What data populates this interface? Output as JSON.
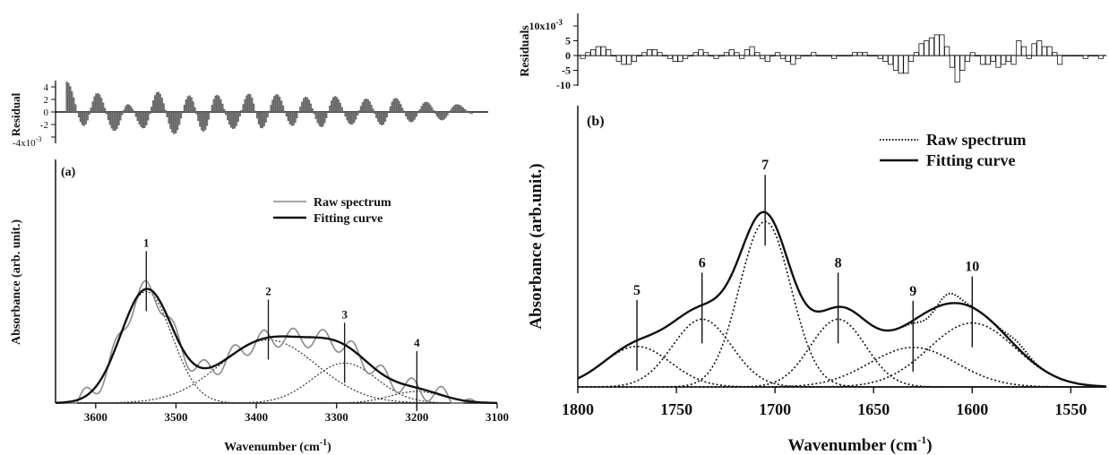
{
  "chart_data": [
    {
      "id": "panel-a",
      "type": "line",
      "panel_label": "(a)",
      "xlabel": "Wavenumber (cm",
      "xlabel_sup": "-1",
      "xlabel_tail": ")",
      "ylabel": "Absorbance (arb. unit.)",
      "xlim": [
        3650,
        3100
      ],
      "ylim": [
        0,
        1
      ],
      "x_ticks": [
        3600,
        3500,
        3400,
        3300,
        3200,
        3100
      ],
      "grid": false,
      "legend_position": "top-right",
      "legend": [
        {
          "label": "Raw spectrum",
          "style": "thin-gray"
        },
        {
          "label": "Fitting curve",
          "style": "thick-black"
        }
      ],
      "components": [
        {
          "label": "1",
          "center": 3537,
          "height": 0.53,
          "width": 32
        },
        {
          "label": "2",
          "center": 3385,
          "height": 0.3,
          "width": 60
        },
        {
          "label": "3",
          "center": 3290,
          "height": 0.19,
          "width": 40
        },
        {
          "label": "4",
          "center": 3200,
          "height": 0.055,
          "width": 33
        }
      ],
      "raw_spectrum": {
        "ripple_amplitude": 0.045,
        "ripple_period_cm": 37,
        "fit_offset": -0.005,
        "note": "oscillating raw trace follows the fitted envelope"
      },
      "residual": {
        "ylabel": "Residual",
        "scale_label": "x10",
        "scale_exp": "-3",
        "ylim": [
          -4.5,
          5
        ],
        "y_ticks": [
          4,
          2,
          0,
          -2,
          -4
        ],
        "y_tick_labels": [
          "4",
          "2",
          "0",
          "-2",
          "-4"
        ],
        "style": "filled-gray-bars",
        "peaks_x": [
          3637,
          3615,
          3598,
          3576,
          3559,
          3539,
          3521,
          3500,
          3481,
          3463,
          3446,
          3425,
          3405,
          3389,
          3370,
          3350,
          3333,
          3313,
          3296,
          3275,
          3256,
          3236,
          3219,
          3199,
          3180,
          3160,
          3141,
          3121
        ],
        "peaks_y": [
          4.8,
          -2.2,
          3.0,
          -3.0,
          1.2,
          -2.6,
          3.2,
          -3.5,
          2.6,
          -3.1,
          2.7,
          -2.7,
          2.9,
          -2.6,
          2.8,
          -2.2,
          2.4,
          -2.4,
          2.5,
          -2.0,
          2.1,
          -2.1,
          2.2,
          -1.6,
          1.6,
          -1.3,
          1.2,
          -0.3
        ]
      }
    },
    {
      "id": "panel-b",
      "type": "line",
      "panel_label": "(b)",
      "xlabel": "Wavenumber (cm",
      "xlabel_sup": "-1",
      "xlabel_tail": ")",
      "ylabel": "Absorbance (arb.unit.)",
      "xlim": [
        1800,
        1532
      ],
      "ylim": [
        0,
        1
      ],
      "x_ticks": [
        1800,
        1750,
        1700,
        1650,
        1600,
        1550
      ],
      "grid": false,
      "legend_position": "top-right",
      "legend": [
        {
          "label": "Raw spectrum",
          "style": "dotted"
        },
        {
          "label": "Fitting curve",
          "style": "thick-black"
        }
      ],
      "components": [
        {
          "label": "5",
          "center": 1770,
          "height": 0.215,
          "width": 17
        },
        {
          "label": "6",
          "center": 1737,
          "height": 0.36,
          "width": 15
        },
        {
          "label": "7",
          "center": 1705,
          "height": 0.88,
          "width": 13
        },
        {
          "label": "8",
          "center": 1668,
          "height": 0.36,
          "width": 14
        },
        {
          "label": "9",
          "center": 1630,
          "height": 0.21,
          "width": 22
        },
        {
          "label": "10",
          "center": 1600,
          "height": 0.34,
          "width": 22
        }
      ],
      "raw_spectrum": {
        "deviations_x": [
          1612,
          1623,
          1577
        ],
        "deviations_y": [
          0.055,
          -0.04,
          0.03
        ]
      },
      "residual": {
        "ylabel": "Residuals",
        "scale_label": "10x10",
        "scale_exp": "-3",
        "ylim": [
          -10,
          14
        ],
        "y_ticks": [
          10,
          5,
          0,
          -5,
          -10
        ],
        "y_tick_labels": [
          "10x10",
          "5",
          "0",
          "-5",
          "-10"
        ],
        "style": "outlined-bars",
        "values": [
          -1,
          1,
          2,
          3,
          3,
          2,
          0,
          -2,
          -3,
          -3,
          -2,
          0,
          1,
          2,
          2,
          1,
          0,
          -1,
          -2,
          -2,
          -1,
          0,
          1,
          2,
          1,
          0,
          -1,
          0,
          1,
          2,
          1,
          -1,
          2,
          3,
          1,
          -1,
          -2,
          0,
          1,
          -1,
          -2,
          -3,
          -1,
          0,
          0,
          1,
          0,
          0,
          0,
          -1,
          0,
          0,
          0,
          1,
          1,
          1,
          0,
          0,
          -1,
          -2,
          -3,
          -5,
          -6,
          -6,
          -2,
          1,
          4,
          5,
          6,
          7,
          7,
          3,
          -4,
          -9,
          -5,
          -2,
          1,
          0,
          -3,
          -3,
          -2,
          -4,
          -3,
          -2,
          -3,
          5,
          3,
          -1,
          4,
          5,
          3,
          3,
          1,
          -3,
          0,
          0,
          0,
          0,
          -1,
          0,
          0,
          -1
        ]
      }
    }
  ]
}
